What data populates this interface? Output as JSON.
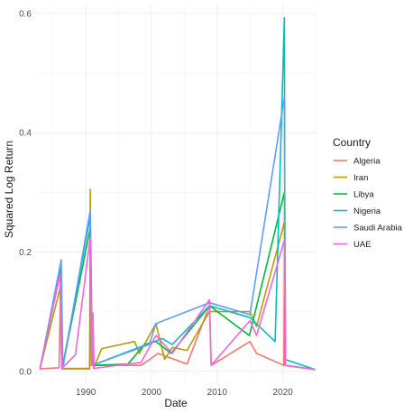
{
  "chart_data": {
    "type": "line",
    "title": "",
    "xlabel": "Date",
    "ylabel": "Squared Log Return",
    "x_axis_type": "date",
    "xlim": [
      "1982-06-01",
      "2025-01-01"
    ],
    "ylim": [
      -0.02,
      0.615
    ],
    "x_ticks": [
      {
        "value": "1990-01-01",
        "label": "1990"
      },
      {
        "value": "2000-01-01",
        "label": "2000"
      },
      {
        "value": "2010-01-01",
        "label": "2010"
      },
      {
        "value": "2020-01-01",
        "label": "2020"
      }
    ],
    "y_ticks": [
      {
        "value": 0.0,
        "label": "0.0"
      },
      {
        "value": 0.2,
        "label": "0.2"
      },
      {
        "value": 0.4,
        "label": "0.4"
      },
      {
        "value": 0.6,
        "label": "0.6"
      }
    ],
    "grid": true,
    "legend": {
      "title": "Country",
      "position": "right"
    },
    "series": [
      {
        "name": "Algeria",
        "color": "#F8766D",
        "points": [
          [
            "1983-01-01",
            0.004
          ],
          [
            "1985-12-01",
            0.006
          ],
          [
            "1986-03-01",
            0.15
          ],
          [
            "1986-06-01",
            0.005
          ],
          [
            "1990-08-01",
            0.005
          ],
          [
            "1990-10-01",
            0.22
          ],
          [
            "1991-01-01",
            0.01
          ],
          [
            "1998-06-01",
            0.01
          ],
          [
            "2001-01-01",
            0.03
          ],
          [
            "2005-06-01",
            0.012
          ],
          [
            "2008-11-01",
            0.11
          ],
          [
            "2009-02-01",
            0.01
          ],
          [
            "2015-01-01",
            0.05
          ],
          [
            "2016-01-01",
            0.03
          ],
          [
            "2020-03-01",
            0.01
          ],
          [
            "2020-04-01",
            0.2
          ],
          [
            "2020-06-01",
            0.01
          ],
          [
            "2024-12-01",
            0.003
          ]
        ]
      },
      {
        "name": "Iran",
        "color": "#B79F00",
        "points": [
          [
            "1983-01-01",
            0.004
          ],
          [
            "1986-02-01",
            0.14
          ],
          [
            "1986-05-01",
            0.004
          ],
          [
            "1990-08-01",
            0.004
          ],
          [
            "1990-09-01",
            0.305
          ],
          [
            "1990-11-01",
            0.01
          ],
          [
            "1991-01-01",
            0.09
          ],
          [
            "1991-03-01",
            0.005
          ],
          [
            "1992-06-01",
            0.038
          ],
          [
            "1997-06-01",
            0.05
          ],
          [
            "1998-03-01",
            0.03
          ],
          [
            "2000-09-01",
            0.08
          ],
          [
            "2002-01-01",
            0.02
          ],
          [
            "2003-03-01",
            0.04
          ],
          [
            "2005-06-01",
            0.035
          ],
          [
            "2008-11-01",
            0.1
          ],
          [
            "2015-01-01",
            0.1
          ],
          [
            "2016-01-01",
            0.075
          ],
          [
            "2020-04-01",
            0.25
          ],
          [
            "2020-06-01",
            0.01
          ],
          [
            "2024-12-01",
            0.003
          ]
        ]
      },
      {
        "name": "Libya",
        "color": "#00BA38",
        "points": [
          [
            "1983-01-01",
            0.004
          ],
          [
            "1986-03-01",
            0.17
          ],
          [
            "1986-06-01",
            0.005
          ],
          [
            "1990-09-01",
            0.24
          ],
          [
            "1990-12-01",
            0.01
          ],
          [
            "1996-06-01",
            0.012
          ],
          [
            "1998-12-01",
            0.045
          ],
          [
            "2000-09-01",
            0.05
          ],
          [
            "2003-01-01",
            0.03
          ],
          [
            "2008-11-01",
            0.11
          ],
          [
            "2014-12-01",
            0.06
          ],
          [
            "2020-04-01",
            0.3
          ],
          [
            "2020-06-01",
            0.01
          ],
          [
            "2024-12-01",
            0.003
          ]
        ]
      },
      {
        "name": "Nigeria",
        "color": "#00BFC4",
        "points": [
          [
            "1983-01-01",
            0.004
          ],
          [
            "1986-03-01",
            0.18
          ],
          [
            "1986-06-01",
            0.005
          ],
          [
            "1990-09-01",
            0.26
          ],
          [
            "1990-12-01",
            0.01
          ],
          [
            "2001-09-01",
            0.055
          ],
          [
            "2003-03-01",
            0.045
          ],
          [
            "2008-11-01",
            0.11
          ],
          [
            "2015-01-01",
            0.09
          ],
          [
            "2018-11-01",
            0.05
          ],
          [
            "2020-04-01",
            0.593
          ],
          [
            "2020-05-01",
            0.02
          ],
          [
            "2024-12-01",
            0.003
          ]
        ]
      },
      {
        "name": "Saudi Arabia",
        "color": "#619CFF",
        "points": [
          [
            "1983-01-01",
            0.004
          ],
          [
            "1986-04-01",
            0.187
          ],
          [
            "1986-07-01",
            0.005
          ],
          [
            "1990-09-01",
            0.27
          ],
          [
            "1990-12-01",
            0.01
          ],
          [
            "1999-09-01",
            0.045
          ],
          [
            "2000-09-01",
            0.08
          ],
          [
            "2008-11-01",
            0.115
          ],
          [
            "2015-01-01",
            0.095
          ],
          [
            "2020-04-01",
            0.46
          ],
          [
            "2020-06-01",
            0.01
          ],
          [
            "2024-12-01",
            0.003
          ]
        ]
      },
      {
        "name": "UAE",
        "color": "#F564E3",
        "points": [
          [
            "1983-01-01",
            0.004
          ],
          [
            "1986-02-01",
            0.163
          ],
          [
            "1986-05-01",
            0.005
          ],
          [
            "1988-06-01",
            0.028
          ],
          [
            "1990-09-01",
            0.225
          ],
          [
            "1990-12-01",
            0.01
          ],
          [
            "1991-02-01",
            0.098
          ],
          [
            "1991-04-01",
            0.005
          ],
          [
            "1998-06-01",
            0.015
          ],
          [
            "2000-09-01",
            0.06
          ],
          [
            "2003-03-01",
            0.03
          ],
          [
            "2008-11-01",
            0.12
          ],
          [
            "2009-02-01",
            0.01
          ],
          [
            "2015-01-01",
            0.085
          ],
          [
            "2016-01-01",
            0.06
          ],
          [
            "2020-04-01",
            0.22
          ],
          [
            "2020-06-01",
            0.01
          ],
          [
            "2024-12-01",
            0.003
          ]
        ]
      }
    ]
  }
}
